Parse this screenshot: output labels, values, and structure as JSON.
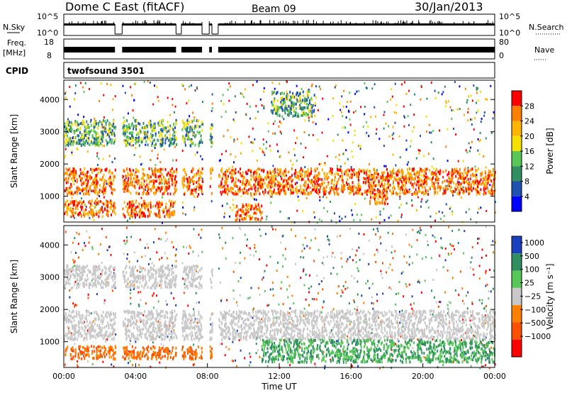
{
  "header": {
    "station": "Dome C East (fitACF)",
    "beam": "Beam 09",
    "date": "30/Jan/2013"
  },
  "panels": {
    "nsky": {
      "label": "N.Sky",
      "ticks": [
        "10^5",
        "10^0"
      ],
      "right_ticks": [
        "10^5",
        "10^0"
      ],
      "right_label": "N.Search"
    },
    "freq": {
      "label": "Freq.",
      "unit": "[MHz]",
      "ticks": [
        "18",
        "8"
      ],
      "right_ticks": [
        "80",
        "0"
      ],
      "right_label": "Nave"
    },
    "cpid": {
      "label": "CPID",
      "value": "twofsound 3501"
    }
  },
  "chart_data": [
    {
      "type": "heatmap",
      "name": "power",
      "ylabel": "Slant Range [km]",
      "xlabel": "Time UT",
      "ylim": [
        200,
        4600
      ],
      "xlim": [
        0,
        24
      ],
      "yticks": [
        "1000",
        "2000",
        "3000",
        "4000"
      ],
      "colorbar": {
        "label": "Power [dB]",
        "ticks": [
          "28",
          "24",
          "20",
          "16",
          "12",
          "8",
          "4"
        ],
        "colors": [
          "#ff0000",
          "#ff7f00",
          "#ffb400",
          "#f5e000",
          "#57c757",
          "#2f8f60",
          "#2050b0",
          "#0000ff"
        ]
      },
      "bands": [
        {
          "t0": 0,
          "t1": 2.9,
          "r0": 400,
          "r1": 900,
          "level": "high"
        },
        {
          "t0": 3.2,
          "t1": 6.2,
          "r0": 400,
          "r1": 900,
          "level": "high"
        },
        {
          "t0": 9.5,
          "t1": 11.0,
          "r0": 300,
          "r1": 800,
          "level": "high"
        },
        {
          "t0": 17.0,
          "t1": 18.0,
          "r0": 800,
          "r1": 1200,
          "level": "high"
        },
        {
          "t0": 0,
          "t1": 24,
          "r0": 1100,
          "r1": 1900,
          "level": "high"
        },
        {
          "t0": 0,
          "t1": 8.5,
          "r0": 2600,
          "r1": 3400,
          "level": "low"
        },
        {
          "t0": 11.5,
          "t1": 14.0,
          "r0": 3500,
          "r1": 4300,
          "level": "low"
        }
      ]
    },
    {
      "type": "heatmap",
      "name": "velocity",
      "ylabel": "Slant Range [km]",
      "xlabel": "Time UT",
      "ylim": [
        200,
        4600
      ],
      "xlim": [
        0,
        24
      ],
      "yticks": [
        "1000",
        "2000",
        "3000",
        "4000"
      ],
      "xticks": [
        "00:00",
        "04:00",
        "08:00",
        "12:00",
        "16:00",
        "20:00",
        "00:00"
      ],
      "colorbar": {
        "label": "Velocity [m s⁻¹]",
        "ticks": [
          "1000",
          "500",
          "100",
          "25",
          "−25",
          "−100",
          "−500",
          "−1000"
        ],
        "colors": [
          "#1a3fbf",
          "#2f8f60",
          "#57c757",
          "#c8c8c8",
          "#ff7f00",
          "#ff5000",
          "#ff0000"
        ]
      },
      "bands": [
        {
          "t0": 0,
          "t1": 8.5,
          "r0": 500,
          "r1": 900,
          "level": "negative"
        },
        {
          "t0": 0,
          "t1": 24,
          "r0": 1100,
          "r1": 2000,
          "level": "near-zero"
        },
        {
          "t0": 11.0,
          "t1": 24,
          "r0": 400,
          "r1": 1100,
          "level": "positive"
        },
        {
          "t0": 0,
          "t1": 8.5,
          "r0": 2700,
          "r1": 3400,
          "level": "near-zero"
        }
      ]
    }
  ],
  "gaps": [
    [
      2.85,
      3.25
    ],
    [
      6.25,
      6.55
    ],
    [
      7.7,
      8.1
    ],
    [
      8.25,
      8.6
    ]
  ]
}
